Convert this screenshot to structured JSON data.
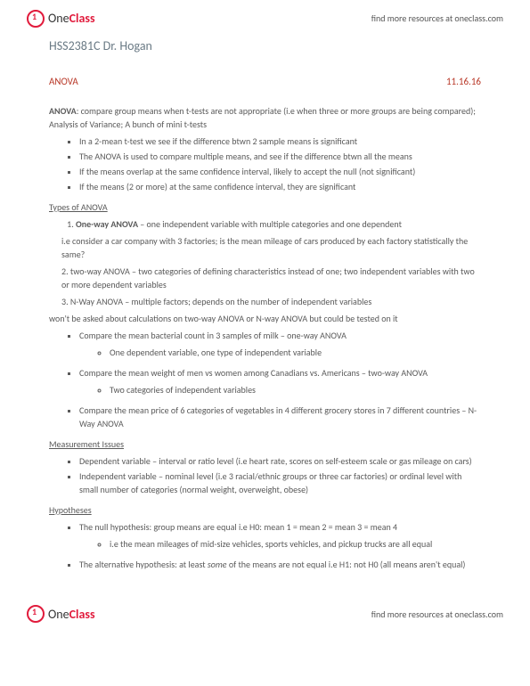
{
  "brand": {
    "name_part1": "One",
    "name_part2": "Class",
    "tagline": "find more resources at oneclass.com"
  },
  "course": "HSS2381C Dr. Hogan",
  "heading": {
    "title": "ANOVA",
    "date": "11.16.16"
  },
  "intro": {
    "label": "ANOVA",
    "text": ": compare group means when t-tests are not appropriate (i.e when three or more groups are being compared); Analysis of Variance; A bunch of mini t-tests"
  },
  "intro_bullets": [
    "In a 2-mean t-test we see if the difference btwn 2 sample means is significant",
    "The ANOVA is used to compare multiple means, and see if the difference btwn all the means",
    "If the means overlap at the same confidence interval, likely to accept the null (not significant)",
    "If the means (2 or more) at the same confidence interval, they are significant"
  ],
  "types_heading": "Types of ANOVA",
  "type1": {
    "label": "One-way ANOVA",
    "text": " – one independent variable with multiple categories and one dependent",
    "example": "i.e consider a car company with 3 factories; is the mean mileage of cars produced by each factory statistically the same?"
  },
  "type2": "2. two-way ANOVA – two categories of defining characteristics instead of one; two independent variables with two or more dependent variables",
  "type3": "3. N-Way ANOVA – multiple factors; depends on the number of independent variables",
  "type_note": "won't be asked about calculations on two-way ANOVA or N-way ANOVA but could be tested on it",
  "compare_bullets": [
    {
      "main": "Compare the mean bacterial count in 3 samples of milk – one-way ANOVA",
      "sub": "One dependent variable, one type of independent variable"
    },
    {
      "main": "Compare the mean weight of men vs women among Canadians vs. Americans – two-way ANOVA",
      "sub": "Two categories of independent variables"
    },
    {
      "main": "Compare the mean price of 6 categories of vegetables in 4 different grocery stores in 7 different countries – N-Way ANOVA",
      "sub": null
    }
  ],
  "measure": {
    "heading": "Measurement Issues",
    "b1": "Dependent variable – interval or ratio level (i.e heart rate, scores on self-esteem scale or gas mileage on cars)",
    "b2": "Independent variable – nominal level (i.e 3 racial/ethnic groups or three car factories) or ordinal level with small number of categories (normal weight, overweight, obese)"
  },
  "hypo": {
    "heading": "Hypotheses",
    "null_main": "The null hypothesis: group means are equal i.e H0: mean 1 = mean 2 = mean 3 = mean 4",
    "null_sub": "i.e the mean mileages of mid-size vehicles, sports vehicles, and pickup trucks are all equal",
    "alt_a": "The alternative hypothesis: at least ",
    "alt_em": "some",
    "alt_b": " of the means are not equal i.e H1: not H0 (all means aren't equal)"
  }
}
